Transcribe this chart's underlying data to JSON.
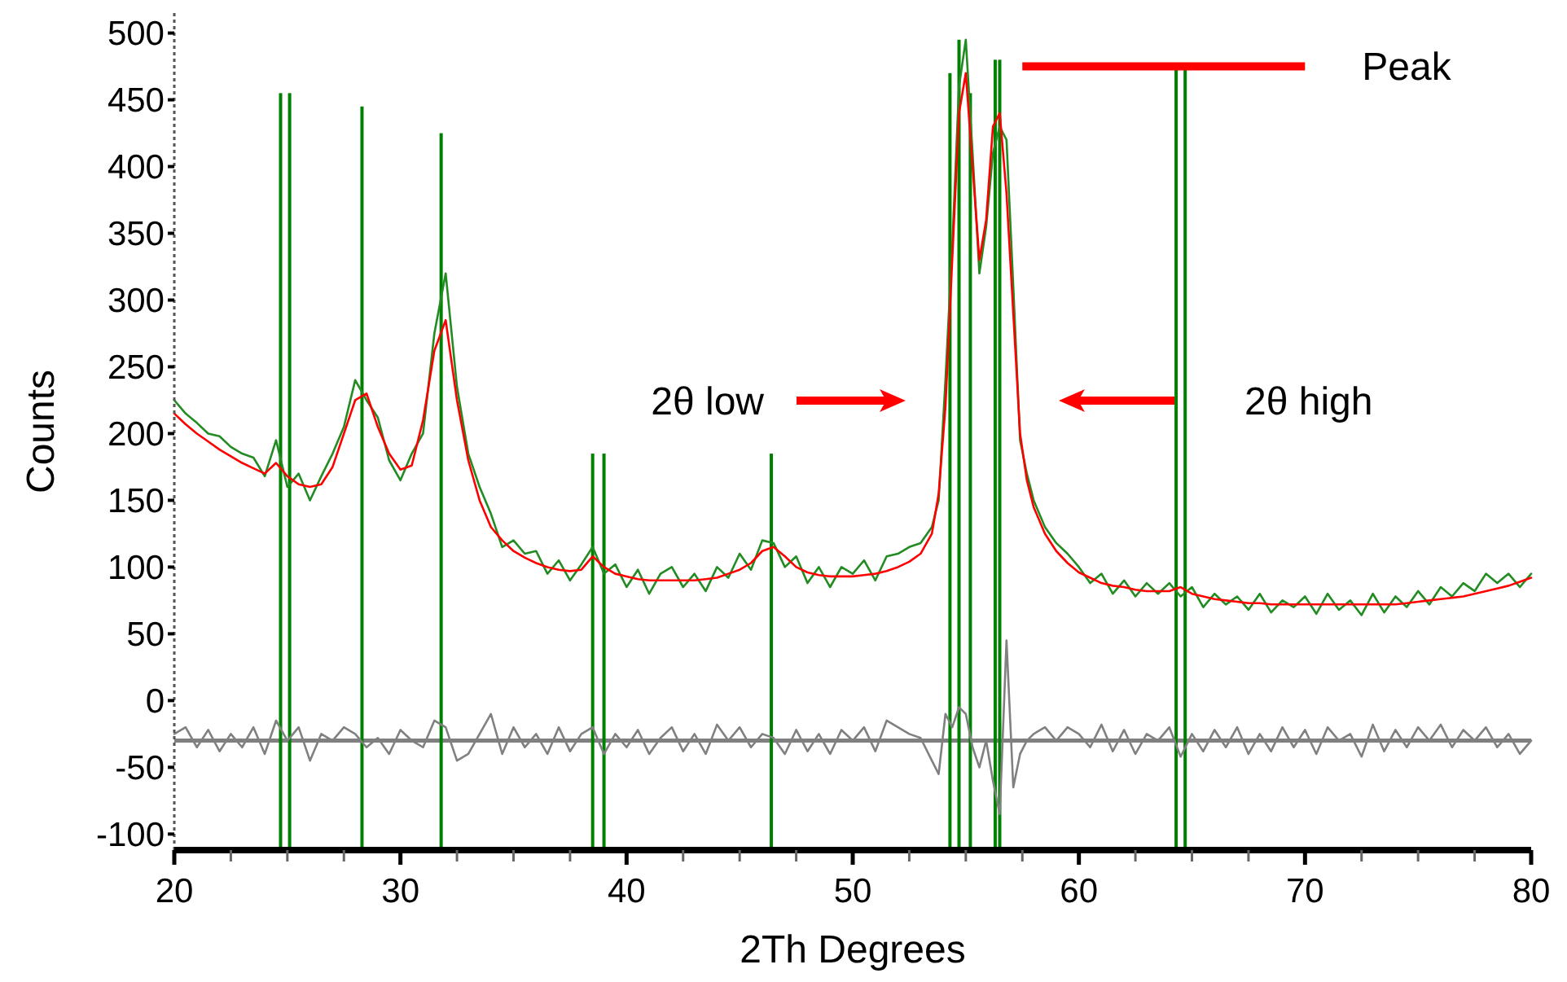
{
  "chart_data": {
    "type": "line",
    "xlabel": "2Th Degrees",
    "ylabel": "Counts",
    "x": [
      20,
      20.5,
      21,
      21.5,
      22,
      22.5,
      23,
      23.5,
      24,
      24.5,
      25,
      25.5,
      26,
      26.5,
      27,
      27.5,
      28,
      28.5,
      29,
      29.5,
      30,
      30.5,
      31,
      31.5,
      32,
      32.5,
      33,
      33.5,
      34,
      34.5,
      35,
      35.5,
      36,
      36.5,
      37,
      37.5,
      38,
      38.5,
      39,
      39.5,
      40,
      40.5,
      41,
      41.5,
      42,
      42.5,
      43,
      43.5,
      44,
      44.5,
      45,
      45.5,
      46,
      46.5,
      47,
      47.5,
      48,
      48.5,
      49,
      49.5,
      50,
      50.5,
      51,
      51.5,
      52,
      52.5,
      53,
      53.5,
      53.8,
      54.1,
      54.4,
      54.7,
      55.0,
      55.3,
      55.6,
      55.9,
      56.2,
      56.5,
      56.8,
      57.1,
      57.4,
      57.7,
      58,
      58.5,
      59,
      59.5,
      60,
      60.5,
      61,
      61.5,
      62,
      62.5,
      63,
      63.5,
      64,
      64.5,
      65,
      65.5,
      66,
      66.5,
      67,
      67.5,
      68,
      68.5,
      69,
      69.5,
      70,
      70.5,
      71,
      71.5,
      72,
      72.5,
      73,
      73.5,
      74,
      74.5,
      75,
      75.5,
      76,
      76.5,
      77,
      77.5,
      78,
      78.5,
      79,
      79.5,
      80
    ],
    "series": [
      {
        "color": "#228b22",
        "values": [
          225,
          215,
          208,
          200,
          198,
          190,
          185,
          182,
          168,
          195,
          160,
          170,
          150,
          168,
          185,
          205,
          240,
          225,
          212,
          180,
          165,
          185,
          200,
          275,
          320,
          235,
          185,
          160,
          140,
          115,
          120,
          110,
          112,
          95,
          105,
          90,
          102,
          115,
          95,
          102,
          85,
          98,
          80,
          95,
          100,
          85,
          95,
          82,
          100,
          92,
          110,
          98,
          120,
          118,
          100,
          108,
          88,
          100,
          85,
          100,
          95,
          105,
          90,
          108,
          110,
          115,
          118,
          130,
          150,
          240,
          340,
          460,
          495,
          410,
          320,
          355,
          410,
          430,
          420,
          310,
          195,
          170,
          150,
          130,
          118,
          110,
          100,
          88,
          95,
          80,
          90,
          78,
          88,
          80,
          88,
          78,
          85,
          70,
          80,
          72,
          78,
          68,
          80,
          66,
          75,
          70,
          78,
          65,
          80,
          68,
          75,
          64,
          80,
          66,
          78,
          70,
          82,
          72,
          85,
          78,
          88,
          82,
          95,
          88,
          95,
          85,
          95
        ]
      },
      {
        "color": "#ff0000",
        "values": [
          215,
          207,
          200,
          194,
          188,
          183,
          178,
          174,
          170,
          178,
          168,
          162,
          160,
          162,
          175,
          200,
          225,
          230,
          205,
          185,
          173,
          176,
          210,
          262,
          285,
          225,
          180,
          150,
          130,
          120,
          112,
          107,
          103,
          100,
          98,
          97,
          98,
          108,
          100,
          95,
          93,
          91,
          90,
          90,
          90,
          90,
          90,
          91,
          92,
          95,
          98,
          103,
          112,
          115,
          108,
          100,
          96,
          94,
          93,
          93,
          93,
          94,
          95,
          97,
          100,
          104,
          110,
          125,
          155,
          220,
          330,
          440,
          470,
          400,
          330,
          360,
          430,
          440,
          380,
          290,
          200,
          165,
          145,
          125,
          112,
          103,
          96,
          92,
          88,
          86,
          85,
          83,
          82,
          82,
          82,
          85,
          80,
          78,
          76,
          75,
          74,
          73,
          73,
          72,
          72,
          72,
          72,
          72,
          72,
          72,
          72,
          72,
          72,
          72,
          72,
          73,
          74,
          75,
          76,
          77,
          78,
          80,
          82,
          84,
          86,
          89,
          92
        ]
      },
      {
        "color": "#808080",
        "values": [
          -25,
          -20,
          -35,
          -22,
          -38,
          -25,
          -35,
          -20,
          -40,
          -15,
          -30,
          -20,
          -45,
          -25,
          -30,
          -20,
          -25,
          -35,
          -28,
          -40,
          -22,
          -30,
          -35,
          -15,
          -20,
          -45,
          -40,
          -25,
          -10,
          -40,
          -20,
          -35,
          -25,
          -40,
          -20,
          -38,
          -25,
          -20,
          -40,
          -25,
          -35,
          -22,
          -40,
          -28,
          -20,
          -38,
          -25,
          -40,
          -18,
          -30,
          -20,
          -35,
          -25,
          -28,
          -40,
          -22,
          -38,
          -25,
          -40,
          -22,
          -30,
          -20,
          -38,
          -15,
          -20,
          -25,
          -28,
          -45,
          -55,
          -10,
          -20,
          -5,
          -10,
          -35,
          -50,
          -30,
          -60,
          -85,
          45,
          -65,
          -40,
          -30,
          -25,
          -20,
          -30,
          -20,
          -25,
          -35,
          -18,
          -38,
          -22,
          -40,
          -25,
          -30,
          -20,
          -42,
          -25,
          -38,
          -22,
          -35,
          -20,
          -40,
          -25,
          -38,
          -20,
          -35,
          -22,
          -40,
          -20,
          -30,
          -25,
          -42,
          -18,
          -38,
          -22,
          -35,
          -20,
          -30,
          -18,
          -35,
          -22,
          -30,
          -20,
          -35,
          -25,
          -40,
          -30
        ]
      },
      {
        "name": "Peak",
        "color": "#ff0000",
        "x": [
          57.5,
          70
        ],
        "values": [
          475,
          475
        ]
      },
      {
        "type": "bar",
        "color": "#008000",
        "x": [
          24.7,
          25.1,
          28.3,
          31.8,
          38.5,
          39.0,
          46.4,
          54.3,
          54.7,
          55.2,
          56.3,
          56.5,
          64.3,
          64.7
        ],
        "base": [
          -112,
          -112,
          -112,
          -112,
          -112,
          -112,
          -112,
          -112,
          -112,
          -112,
          -112,
          -112,
          -112,
          -112
        ],
        "values": [
          567,
          567,
          557,
          537,
          297,
          297,
          297,
          582,
          607,
          567,
          592,
          592,
          587,
          587
        ]
      }
    ],
    "xlim": [
      20,
      80
    ],
    "ylim": [
      -112,
      515
    ],
    "xticks": [
      20,
      {
        "value": 22.5,
        "label": null
      },
      {
        "value": 25,
        "label": null
      },
      {
        "value": 27.5,
        "label": null
      },
      30,
      {
        "value": 32.5,
        "label": null
      },
      {
        "value": 35,
        "label": null
      },
      {
        "value": 37.5,
        "label": null
      },
      40,
      {
        "value": 42.5,
        "label": null
      },
      {
        "value": 45,
        "label": null
      },
      {
        "value": 47.5,
        "label": null
      },
      50,
      {
        "value": 52.5,
        "label": null
      },
      {
        "value": 55,
        "label": null
      },
      {
        "value": 57.5,
        "label": null
      },
      60,
      {
        "value": 62.5,
        "label": null
      },
      {
        "value": 65,
        "label": null
      },
      {
        "value": 67.5,
        "label": null
      },
      70,
      {
        "value": 72.5,
        "label": null
      },
      {
        "value": 75,
        "label": null
      },
      {
        "value": 77.5,
        "label": null
      },
      80
    ],
    "yticks": [
      -100,
      -50,
      0,
      50,
      100,
      150,
      200,
      250,
      300,
      350,
      400,
      450,
      500
    ],
    "ref_lines": [
      {
        "axis": "y",
        "value": -30,
        "color": "#808080"
      }
    ],
    "annotations": [
      "2θ low",
      "2θ high"
    ],
    "grid": false
  }
}
